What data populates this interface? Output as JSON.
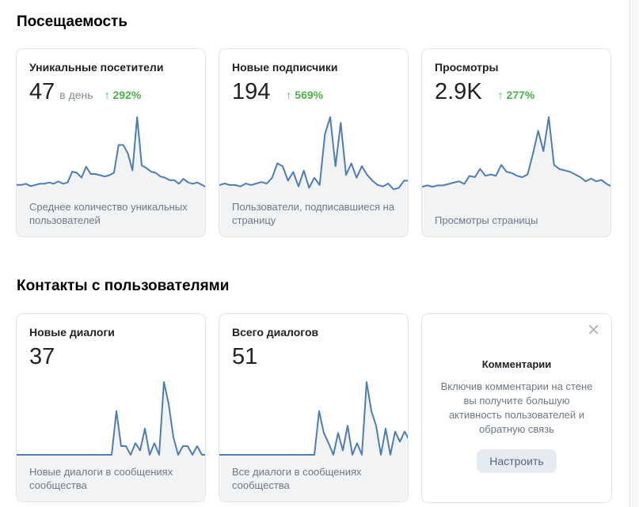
{
  "sections": [
    {
      "title": "Посещаемость"
    },
    {
      "title": "Контакты с пользователями"
    }
  ],
  "cards": [
    {
      "title": "Уникальные посетители",
      "value": "47",
      "unit": "в день",
      "change": "↑ 292%",
      "description": "Среднее количество уникальных пользователей",
      "sparkline": [
        6,
        6,
        7,
        5,
        6,
        7,
        7,
        8,
        7,
        9,
        7,
        8,
        17,
        16,
        12,
        21,
        15,
        15,
        14,
        13,
        14,
        16,
        39,
        39,
        32,
        18,
        62,
        22,
        20,
        17,
        16,
        13,
        12,
        10,
        10,
        7,
        11,
        8,
        7,
        8,
        6,
        4
      ]
    },
    {
      "title": "Новые подписчики",
      "value": "194",
      "unit": "",
      "change": "↑ 569%",
      "description": "Пользователи, подписавшиеся на страницу",
      "sparkline": [
        5,
        6,
        5,
        5,
        4,
        6,
        5,
        6,
        7,
        6,
        10,
        20,
        18,
        8,
        14,
        4,
        15,
        3,
        10,
        5,
        40,
        52,
        18,
        48,
        12,
        20,
        10,
        18,
        12,
        8,
        5,
        4,
        6,
        2,
        3,
        8,
        8
      ]
    },
    {
      "title": "Просмотры",
      "value": "2.9K",
      "unit": "",
      "change": "↑ 277%",
      "description": "Просмотры страницы",
      "sparkline": [
        4,
        5,
        4,
        5,
        5,
        6,
        7,
        8,
        6,
        12,
        11,
        17,
        12,
        13,
        12,
        20,
        15,
        14,
        12,
        11,
        13,
        28,
        45,
        30,
        55,
        20,
        17,
        16,
        15,
        13,
        11,
        8,
        10,
        8,
        9,
        6,
        4
      ]
    },
    {
      "title": "Новые диалоги",
      "value": "37",
      "unit": "",
      "change": "",
      "description": "Новые диалоги в сообщениях сообщества",
      "sparkline": [
        0,
        0,
        0,
        0,
        0,
        0,
        0,
        0,
        0,
        0,
        0,
        0,
        0,
        0,
        0,
        0,
        0,
        0,
        0,
        0,
        0,
        30,
        6,
        6,
        0,
        8,
        3,
        18,
        0,
        8,
        0,
        50,
        35,
        12,
        0,
        6,
        6,
        0,
        6,
        0,
        0
      ]
    },
    {
      "title": "Всего диалогов",
      "value": "51",
      "unit": "",
      "change": "",
      "description": "Все диалоги в сообщениях сообщества",
      "sparkline": [
        0,
        0,
        0,
        0,
        0,
        0,
        0,
        0,
        0,
        0,
        0,
        0,
        0,
        0,
        0,
        0,
        0,
        0,
        0,
        0,
        0,
        30,
        15,
        8,
        0,
        15,
        3,
        20,
        0,
        8,
        0,
        50,
        30,
        20,
        0,
        18,
        0,
        16,
        9,
        16,
        10
      ]
    }
  ],
  "promo": {
    "close": "✕",
    "title": "Комментарии",
    "text": "Включив комментарии на стене вы получите большую активность пользователей и обратную связь",
    "button": "Настроить"
  },
  "colors": {
    "line": "#4f7db3",
    "fill": "#f2f3f5",
    "positive": "#4bb34b"
  }
}
